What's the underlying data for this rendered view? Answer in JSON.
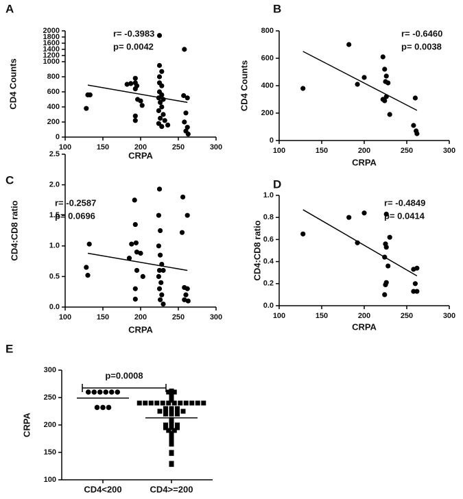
{
  "chart_data": [
    {
      "type": "scatter",
      "panel": "A",
      "ylabel": "CD4 Counts",
      "xlabel": "CRPA",
      "annotations": [
        "r= -0.3983",
        "p= 0.0042"
      ],
      "x": [
        128,
        130,
        133,
        182,
        187,
        193,
        193,
        195,
        193,
        196,
        193,
        193,
        202,
        200,
        225,
        225,
        228,
        225,
        225,
        228,
        225,
        228,
        224,
        230,
        226,
        228,
        224,
        230,
        226,
        232,
        224,
        228,
        236,
        258,
        257,
        262,
        260,
        258,
        262,
        260,
        263
      ],
      "y": [
        380,
        560,
        560,
        700,
        710,
        720,
        780,
        680,
        640,
        500,
        280,
        220,
        420,
        480,
        1850,
        950,
        870,
        800,
        720,
        680,
        600,
        560,
        520,
        500,
        460,
        400,
        350,
        300,
        250,
        220,
        180,
        140,
        160,
        1400,
        550,
        520,
        320,
        200,
        130,
        80,
        40
      ],
      "fit": {
        "x": [
          130,
          262
        ],
        "y": [
          690,
          460
        ]
      },
      "xlim": [
        100,
        300
      ],
      "xticks": [
        100,
        150,
        200,
        250,
        300
      ],
      "ylim": [
        0,
        2000
      ],
      "ybreak": 1000,
      "yticks": [
        0,
        200,
        400,
        600,
        800,
        1000,
        1200,
        1400,
        1600,
        1800,
        2000
      ],
      "color": "#000000"
    },
    {
      "type": "scatter",
      "panel": "B",
      "ylabel": "CD4  Counts",
      "xlabel": "CRPA",
      "annotations": [
        "r= -0.6460",
        "p= 0.0038"
      ],
      "x": [
        128,
        182,
        192,
        200,
        222,
        224,
        226,
        225,
        228,
        226,
        222,
        224,
        230,
        258,
        260,
        261,
        262
      ],
      "y": [
        380,
        700,
        410,
        460,
        610,
        520,
        470,
        430,
        420,
        320,
        300,
        290,
        190,
        110,
        310,
        70,
        50
      ],
      "fit": {
        "x": [
          128,
          262
        ],
        "y": [
          650,
          220
        ]
      },
      "xlim": [
        100,
        300
      ],
      "xticks": [
        100,
        150,
        200,
        250,
        300
      ],
      "ylim": [
        0,
        800
      ],
      "yticks": [
        0,
        200,
        400,
        600,
        800
      ],
      "color": "#000000"
    },
    {
      "type": "scatter",
      "panel": "C",
      "ylabel": "CD4:CD8 ratio",
      "xlabel": "CRPA",
      "annotations": [
        "r= -0.2587",
        "p= 0.0696"
      ],
      "x": [
        128,
        130,
        132,
        185,
        188,
        192,
        193,
        194,
        195,
        200,
        195,
        193,
        193,
        203,
        225,
        224,
        226,
        224,
        226,
        228,
        225,
        230,
        224,
        227,
        225,
        228,
        226,
        230,
        256,
        262,
        255,
        258,
        262,
        260,
        258,
        263
      ],
      "y": [
        0.65,
        0.52,
        1.03,
        0.8,
        1.03,
        1.75,
        1.35,
        1.05,
        0.9,
        0.88,
        0.6,
        0.3,
        0.13,
        0.5,
        1.93,
        1.5,
        1.25,
        1.0,
        0.85,
        0.7,
        0.6,
        0.6,
        0.5,
        0.4,
        0.3,
        0.2,
        0.12,
        0.05,
        1.8,
        1.5,
        1.22,
        0.32,
        0.3,
        0.2,
        0.12,
        0.1
      ],
      "fit": {
        "x": [
          130,
          262
        ],
        "y": [
          0.88,
          0.6
        ]
      },
      "xlim": [
        100,
        300
      ],
      "xticks": [
        100,
        150,
        200,
        250,
        300
      ],
      "ylim": [
        0,
        2.5
      ],
      "yticks": [
        {
          "value": 0,
          "label": "0.0"
        },
        0.5,
        {
          "value": 1,
          "label": "1.0"
        },
        1.5,
        {
          "value": 2,
          "label": "2.0"
        },
        2.5
      ],
      "color": "#000000"
    },
    {
      "type": "scatter",
      "panel": "D",
      "ylabel": "CD4:CD8 ratio",
      "xlabel": "CRPA",
      "annotations": [
        "r= -0.4849",
        "p= 0.0414"
      ],
      "x": [
        128,
        182,
        192,
        200,
        226,
        230,
        225,
        226,
        224,
        228,
        226,
        225,
        224,
        258,
        262,
        260,
        258,
        262
      ],
      "y": [
        0.65,
        0.8,
        0.57,
        0.84,
        0.83,
        0.62,
        0.56,
        0.53,
        0.44,
        0.36,
        0.21,
        0.19,
        0.1,
        0.33,
        0.34,
        0.2,
        0.13,
        0.13
      ],
      "fit": {
        "x": [
          128,
          262
        ],
        "y": [
          0.87,
          0.27
        ]
      },
      "xlim": [
        100,
        300
      ],
      "xticks": [
        100,
        150,
        200,
        250,
        300
      ],
      "ylim": [
        0,
        1
      ],
      "yticks": [
        {
          "value": 0,
          "label": "0.0"
        },
        0.2,
        0.4,
        0.6,
        0.8,
        {
          "value": 1,
          "label": "1.0"
        }
      ],
      "color": "#000000"
    },
    {
      "type": "dot",
      "panel": "E",
      "ylabel": "CRPA",
      "annotation": "p=0.0008",
      "categories": [
        "CD4<200",
        "CD4>=200"
      ],
      "groups": [
        {
          "marker": "circle",
          "line": 249,
          "values": [
            260,
            260,
            260,
            260,
            260,
            260,
            232,
            232,
            232
          ]
        },
        {
          "marker": "square",
          "line": 213,
          "values": [
            262,
            260,
            260,
            258,
            256,
            251,
            250,
            245,
            240,
            240,
            240,
            240,
            240,
            240,
            240,
            240,
            240,
            240,
            240,
            240,
            230,
            230,
            230,
            228,
            225,
            225,
            225,
            225,
            225,
            222,
            220,
            220,
            220,
            210,
            205,
            200,
            200,
            200,
            195,
            195,
            195,
            190,
            190,
            185,
            180,
            175,
            170,
            165,
            150,
            148,
            130,
            128
          ]
        }
      ],
      "ylim": [
        100,
        300
      ],
      "yticks": [
        100,
        150,
        200,
        250,
        300
      ],
      "color": "#000000"
    }
  ]
}
